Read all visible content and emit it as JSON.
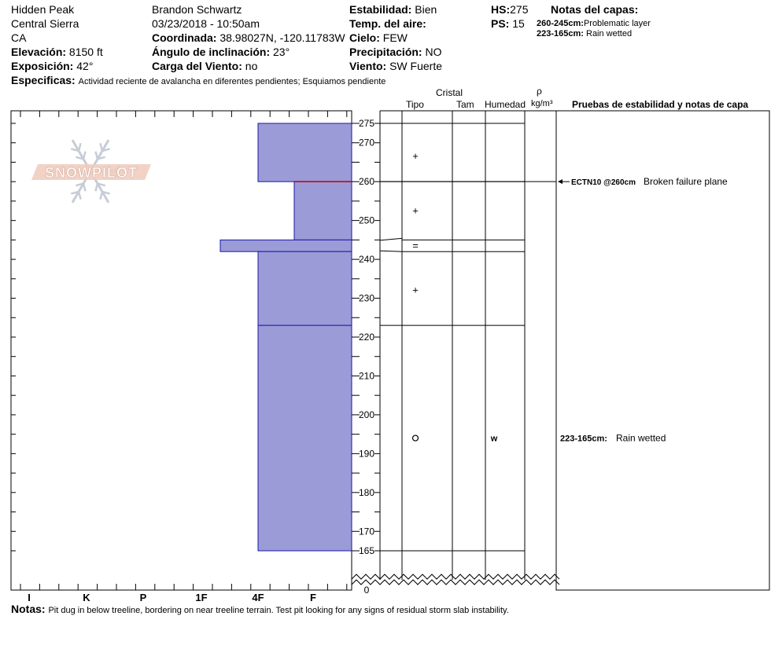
{
  "header": {
    "location": "Hidden Peak",
    "range": "Central Sierra",
    "state": "CA",
    "elevation_label": "Elevación:",
    "elevation_value": "8150 ft",
    "exposure_label": "Exposición:",
    "exposure_value": "42°",
    "observer": "Brandon Schwartz",
    "datetime": "03/23/2018 - 10:50am",
    "coord_label": "Coordinada:",
    "coord_value": "38.98027N, -120.11783W",
    "slope_label": "Ángulo de inclinación:",
    "slope_value": "23°",
    "wind_load_label": "Carga del Viento:",
    "wind_load_value": "no",
    "stability_label": "Estabilidad:",
    "stability_value": "Bien",
    "air_temp_label": "Temp. del aire:",
    "air_temp_value": "",
    "sky_label": "Cielo:",
    "sky_value": "FEW",
    "precip_label": "Precipitación:",
    "precip_value": "NO",
    "wind_label": "Viento:",
    "wind_value": "SW Fuerte",
    "hs_label": "HS:",
    "hs_value": "275",
    "ps_label": "PS:",
    "ps_value": "15",
    "layer_notes_title": "Notas del capas:",
    "layer_notes": [
      {
        "range": "260-245cm:",
        "text": "Problematic layer"
      },
      {
        "range": "223-165cm:",
        "text": "Rain wetted"
      }
    ],
    "specifics_label": "Especificas:",
    "specifics_value": "Actividad reciente de avalancha en diferentes pendientes;  Esquiamos pendiente"
  },
  "logo_text": "SNOWPILOT",
  "columns": {
    "crystal": "Cristal",
    "type": "Tipo",
    "size": "Tam",
    "humidity": "Humedad",
    "rho": "ρ",
    "density_unit": "kg/m³",
    "tests_title": "Pruebas de estabilidad y notas de capa"
  },
  "notes_label": "Notas:",
  "notes_value": "Pit dug in below treeline, bordering on near treeline terrain. Test pit looking for any signs of residual storm slab instability.",
  "colors": {
    "layer_fill": "#9b9bd7",
    "layer_stroke": "#1a1aa6",
    "failure_line": "#cc0000"
  },
  "chart_data": {
    "type": "snow_profile",
    "hardness_scale": [
      "I",
      "K",
      "P",
      "1F",
      "4F",
      "F"
    ],
    "height_ticks": [
      275,
      270,
      260,
      250,
      240,
      230,
      220,
      210,
      200,
      190,
      180,
      170,
      165,
      0
    ],
    "layers": [
      {
        "top": 275,
        "bottom": 260,
        "hardness": "4F",
        "crystal": "+",
        "humidity": ""
      },
      {
        "top": 260,
        "bottom": 245,
        "hardness": "F-",
        "crystal": "+",
        "humidity": ""
      },
      {
        "top": 245,
        "bottom": 242,
        "hardness": "1F+",
        "crystal": "=",
        "humidity": ""
      },
      {
        "top": 242,
        "bottom": 223,
        "hardness": "4F",
        "crystal": "+",
        "humidity": ""
      },
      {
        "top": 223,
        "bottom": 165,
        "hardness": "4F",
        "crystal": "o",
        "humidity": "w"
      }
    ],
    "failure_depth": 260,
    "test_results": [
      {
        "height": 260,
        "code": "ECTN10 @260cm",
        "note": "Broken failure plane"
      },
      {
        "height": 194,
        "code": "223-165cm:",
        "note": "Rain wetted"
      }
    ]
  }
}
